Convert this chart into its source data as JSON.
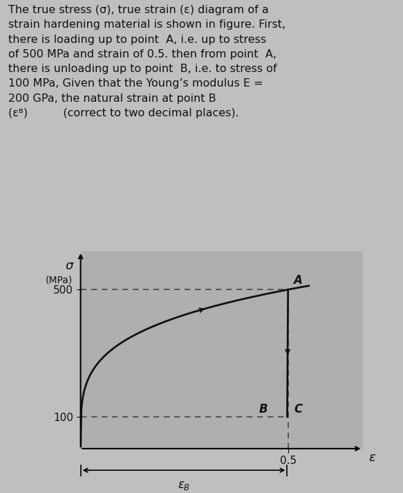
{
  "stress_A": 500,
  "strain_A": 0.5,
  "stress_B": 100,
  "E_GPa": 200,
  "xlim": [
    0,
    0.68
  ],
  "ylim": [
    0,
    620
  ],
  "bg_color": "#c0bfbf",
  "plot_bg_color": "#b0afaf",
  "text_color": "#111111",
  "dashed_color": "#444444",
  "curve_color": "#111111",
  "figsize": [
    5.83,
    7.12
  ],
  "dpi": 100
}
